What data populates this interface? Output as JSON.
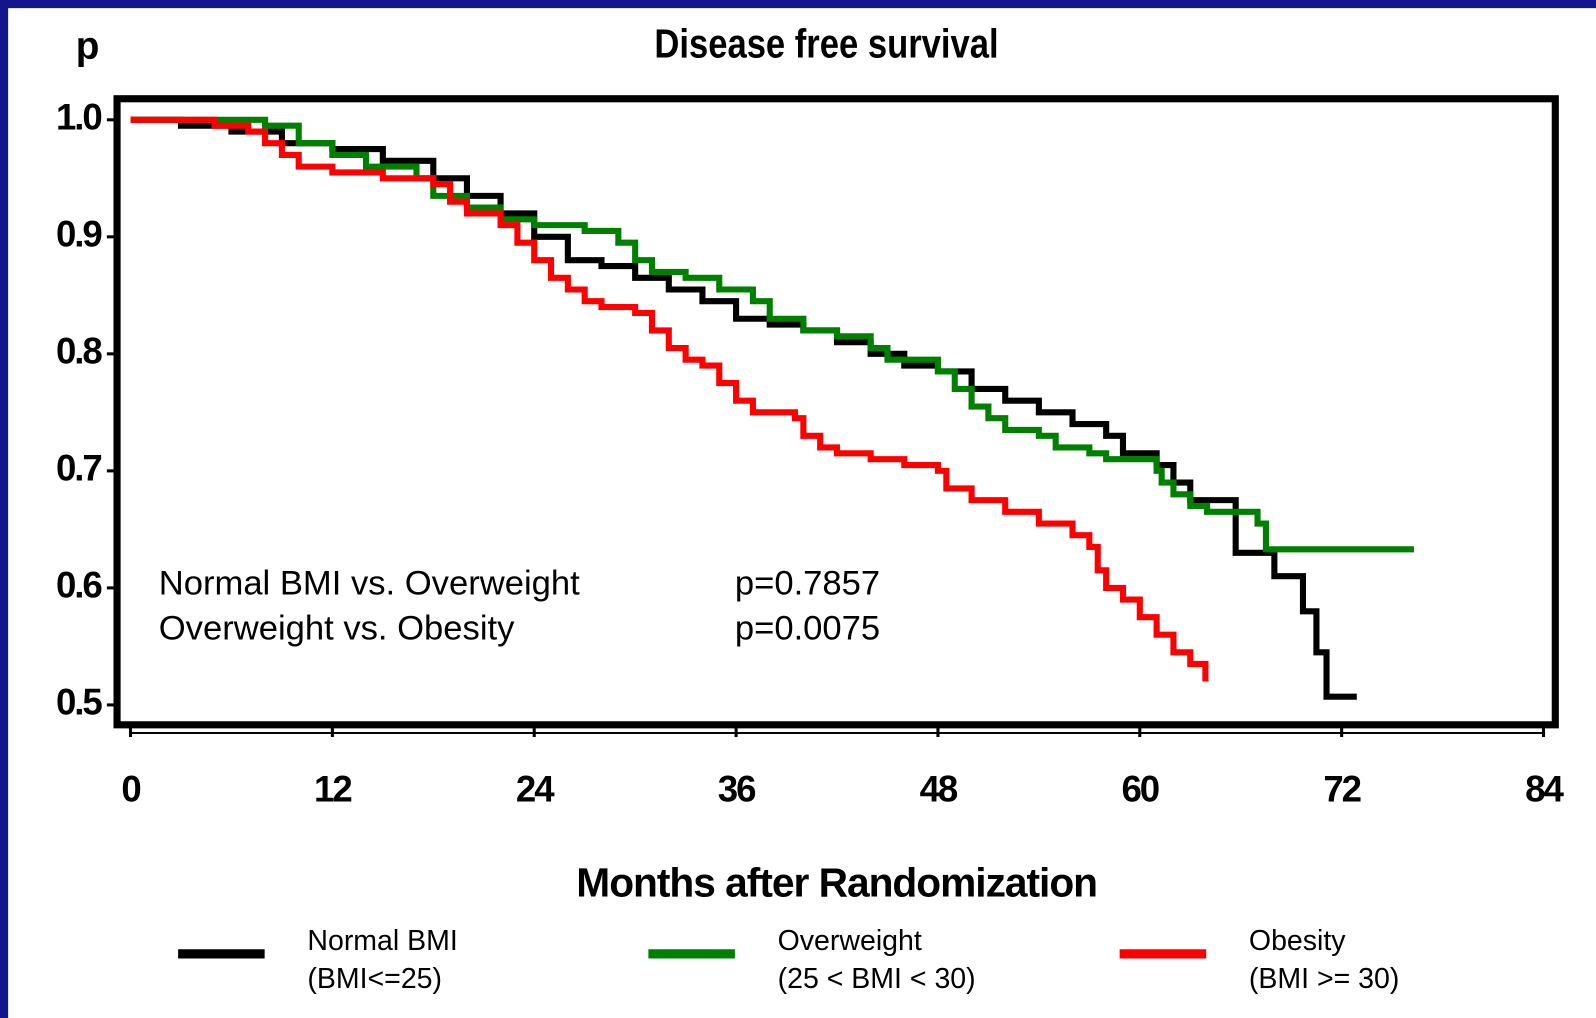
{
  "chart_data": {
    "type": "step",
    "title": "Disease free survival",
    "y_label": "p",
    "x_label": "Months after Randomization",
    "xlim": [
      -0.8,
      84.7
    ],
    "ylim": [
      0.483,
      1.018
    ],
    "xticks": [
      0,
      12,
      24,
      36,
      48,
      60,
      72,
      84
    ],
    "yticks": [
      0.5,
      0.6,
      0.7,
      0.8,
      0.9,
      {
        "value": 1,
        "label": "1.0"
      }
    ],
    "annotations": [
      [
        "Normal BMI vs. Overweight",
        "p=0.7857"
      ],
      [
        "Overweight vs. Obesity",
        "p=0.0075"
      ]
    ],
    "series": [
      {
        "name": "Normal BMI",
        "description": "(BMI<=25)",
        "color": "#000000",
        "x": [
          0,
          3,
          6,
          9,
          12,
          15,
          18,
          20,
          22,
          24,
          26,
          28,
          30,
          32,
          34,
          36,
          38,
          40,
          42,
          44,
          46,
          48,
          50,
          52,
          54,
          56,
          58,
          59,
          61,
          62,
          63,
          65.7,
          68,
          69.7,
          70.5,
          71.1,
          72.9
        ],
        "values": [
          1.0,
          0.995,
          0.99,
          0.98,
          0.975,
          0.965,
          0.95,
          0.935,
          0.92,
          0.9,
          0.88,
          0.875,
          0.865,
          0.855,
          0.845,
          0.83,
          0.825,
          0.82,
          0.81,
          0.8,
          0.79,
          0.785,
          0.77,
          0.76,
          0.75,
          0.74,
          0.73,
          0.715,
          0.705,
          0.69,
          0.675,
          0.63,
          0.61,
          0.58,
          0.545,
          0.507,
          0.507
        ]
      },
      {
        "name": "Overweight",
        "description": "(25 < BMI < 30)",
        "color": "#008000",
        "x": [
          0,
          8,
          10,
          12,
          14,
          17,
          18,
          20,
          22,
          24,
          27,
          29,
          30,
          31,
          33,
          35,
          37,
          38,
          40,
          42,
          44,
          45,
          48,
          49,
          50,
          51,
          52,
          54,
          55,
          57,
          58,
          61,
          61.3,
          62,
          63,
          64,
          67,
          67.5,
          76.3
        ],
        "values": [
          1.0,
          0.995,
          0.98,
          0.97,
          0.96,
          0.95,
          0.935,
          0.925,
          0.915,
          0.91,
          0.905,
          0.895,
          0.88,
          0.87,
          0.865,
          0.855,
          0.845,
          0.83,
          0.82,
          0.815,
          0.805,
          0.795,
          0.785,
          0.77,
          0.755,
          0.745,
          0.735,
          0.73,
          0.72,
          0.715,
          0.71,
          0.7,
          0.69,
          0.68,
          0.67,
          0.665,
          0.655,
          0.633,
          0.633
        ]
      },
      {
        "name": "Obesity",
        "description": "(BMI >= 30)",
        "color": "#ff0000",
        "x": [
          0,
          5,
          7,
          8,
          9,
          10,
          12,
          15,
          18,
          19,
          20,
          22,
          23,
          24,
          25,
          26,
          27,
          28,
          30,
          31,
          32,
          33,
          34,
          35,
          36,
          37,
          39.5,
          40,
          41,
          42,
          44,
          46,
          48,
          48.5,
          50,
          52,
          54,
          56,
          57,
          57.5,
          58,
          59,
          60,
          61,
          62,
          63,
          63.9
        ],
        "values": [
          1.0,
          0.995,
          0.99,
          0.98,
          0.97,
          0.96,
          0.955,
          0.95,
          0.945,
          0.93,
          0.92,
          0.91,
          0.895,
          0.88,
          0.865,
          0.855,
          0.845,
          0.84,
          0.835,
          0.82,
          0.805,
          0.795,
          0.79,
          0.775,
          0.76,
          0.75,
          0.745,
          0.73,
          0.72,
          0.715,
          0.71,
          0.705,
          0.7,
          0.685,
          0.675,
          0.665,
          0.655,
          0.645,
          0.635,
          0.615,
          0.6,
          0.59,
          0.575,
          0.56,
          0.545,
          0.535,
          0.52
        ]
      }
    ]
  }
}
